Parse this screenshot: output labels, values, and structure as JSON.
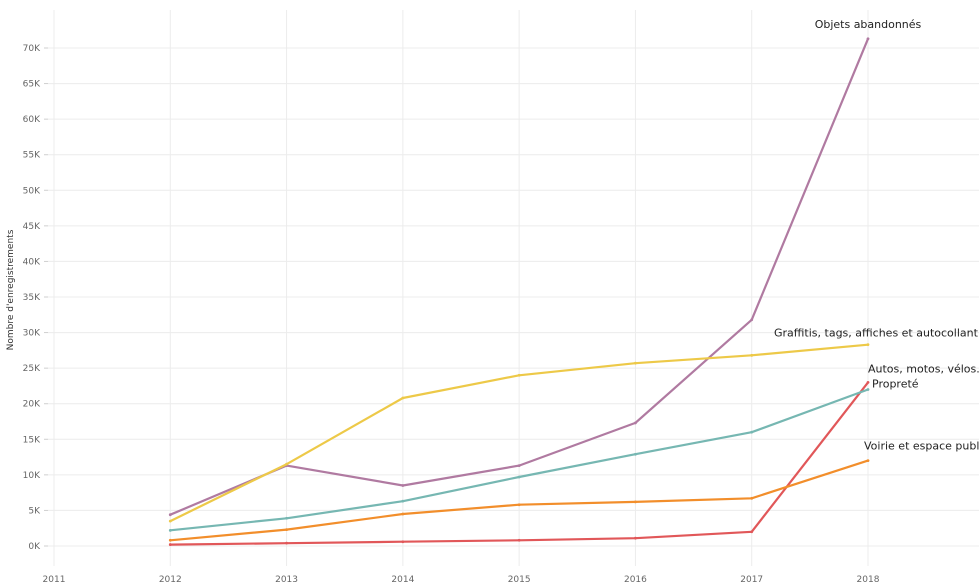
{
  "chart_data": {
    "type": "line",
    "title": "",
    "xlabel": "",
    "ylabel": "Nombre d'enregistrements",
    "x": [
      2011,
      2012,
      2013,
      2014,
      2015,
      2016,
      2017,
      2018
    ],
    "x_tick_labels": [
      "2011",
      "2012",
      "2013",
      "2014",
      "2015",
      "2016",
      "2017",
      "2018"
    ],
    "ylim": [
      0,
      70000
    ],
    "y_ticks": [
      0,
      5000,
      10000,
      15000,
      20000,
      25000,
      30000,
      35000,
      40000,
      45000,
      50000,
      55000,
      60000,
      65000,
      70000
    ],
    "y_tick_labels": [
      "0K",
      "5K",
      "10K",
      "15K",
      "20K",
      "25K",
      "30K",
      "35K",
      "40K",
      "45K",
      "50K",
      "55K",
      "60K",
      "65K",
      "70K"
    ],
    "grid": true,
    "legend": "none (series labelled at line ends)",
    "series": [
      {
        "name": "Objets abandonnés",
        "color": "#b07aa1",
        "x": [
          2012,
          2013,
          2014,
          2015,
          2016,
          2017,
          2018
        ],
        "values": [
          4400,
          11300,
          8500,
          11300,
          17300,
          31800,
          71300
        ]
      },
      {
        "name": "Graffitis, tags, affiches et autocollant",
        "color": "#edc948",
        "x": [
          2012,
          2013,
          2014,
          2015,
          2016,
          2017,
          2018
        ],
        "values": [
          3500,
          11500,
          20800,
          24000,
          25700,
          26800,
          28300
        ]
      },
      {
        "name": "Autos, motos, vélos.",
        "color": "#e15759",
        "x": [
          2012,
          2013,
          2014,
          2015,
          2016,
          2017,
          2018
        ],
        "values": [
          200,
          400,
          600,
          800,
          1100,
          2000,
          23000
        ]
      },
      {
        "name": "Propreté",
        "color": "#76b7b2",
        "x": [
          2012,
          2013,
          2014,
          2015,
          2016,
          2017,
          2018
        ],
        "values": [
          2200,
          3900,
          6300,
          9700,
          12900,
          16000,
          22000
        ]
      },
      {
        "name": "Voirie et espace publi",
        "color": "#f28e2b",
        "x": [
          2012,
          2013,
          2014,
          2015,
          2016,
          2017,
          2018
        ],
        "values": [
          800,
          2300,
          4500,
          5800,
          6200,
          6700,
          12000
        ]
      }
    ]
  }
}
